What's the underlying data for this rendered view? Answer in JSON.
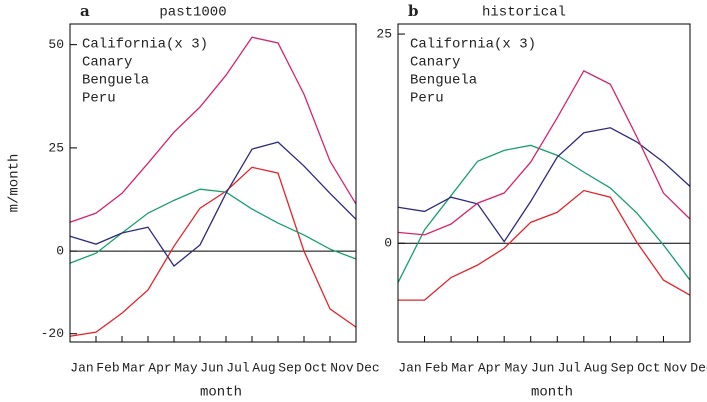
{
  "chart_data": [
    {
      "type": "line",
      "panel": "a",
      "title": "past1000",
      "y_label": "m/month",
      "x_label": "month",
      "categories": [
        "Jan",
        "Feb",
        "Mar",
        "Apr",
        "May",
        "Jun",
        "Jul",
        "Aug",
        "Sep",
        "Oct",
        "Nov",
        "Dec"
      ],
      "ylim": [
        -22,
        55
      ],
      "yticks": [
        -20,
        0,
        25,
        50
      ],
      "zero_line": true,
      "series": [
        {
          "name": "California(x 3)",
          "color": "#e3242b",
          "values": [
            -20.6,
            -19.6,
            -15,
            -9.4,
            1.2,
            10.4,
            14.5,
            20.3,
            18.9,
            0,
            -14,
            -18.4
          ]
        },
        {
          "name": "Canary",
          "color": "#17a06c",
          "values": [
            -2.9,
            -0.5,
            4.4,
            9.2,
            12.3,
            15,
            14.3,
            10.2,
            6.8,
            3.9,
            0.5,
            -1.9
          ]
        },
        {
          "name": "Benguela",
          "color": "#2d2a80",
          "values": [
            3.6,
            1.7,
            4.4,
            5.8,
            -3.6,
            1.5,
            14,
            24.7,
            26.4,
            20.6,
            14,
            7.7
          ]
        },
        {
          "name": "Peru",
          "color": "#d42472",
          "values": [
            7,
            9.2,
            14,
            21.3,
            28.8,
            34.9,
            42.6,
            51.8,
            50.4,
            38,
            21.8,
            11.4
          ]
        }
      ]
    },
    {
      "type": "line",
      "panel": "b",
      "title": "historical",
      "x_label": "month",
      "categories": [
        "Jan",
        "Feb",
        "Mar",
        "Apr",
        "May",
        "Jun",
        "Jul",
        "Aug",
        "Sep",
        "Oct",
        "Nov",
        "Dec"
      ],
      "ylim": [
        -11.8,
        26.2
      ],
      "yticks": [
        0,
        25
      ],
      "zero_line": true,
      "series": [
        {
          "name": "California(x 3)",
          "color": "#e3242b",
          "values": [
            -6.8,
            -6.8,
            -4.1,
            -2.6,
            -0.6,
            2.5,
            3.7,
            6.3,
            5.5,
            0.1,
            -4.4,
            -6.2
          ]
        },
        {
          "name": "Canary",
          "color": "#17a06c",
          "values": [
            -4.7,
            1.6,
            5.7,
            9.8,
            11.1,
            11.7,
            10.5,
            8.5,
            6.6,
            3.6,
            -0.2,
            -4.4
          ]
        },
        {
          "name": "Benguela",
          "color": "#2d2a80",
          "values": [
            4.3,
            3.8,
            5.5,
            4.7,
            0.2,
            5,
            10.3,
            13.2,
            13.8,
            12.1,
            9.7,
            6.8
          ]
        },
        {
          "name": "Peru",
          "color": "#d42472",
          "values": [
            1.3,
            1,
            2.3,
            4.8,
            6,
            9.7,
            15,
            20.6,
            19,
            12.7,
            6,
            2.9
          ]
        }
      ]
    }
  ]
}
